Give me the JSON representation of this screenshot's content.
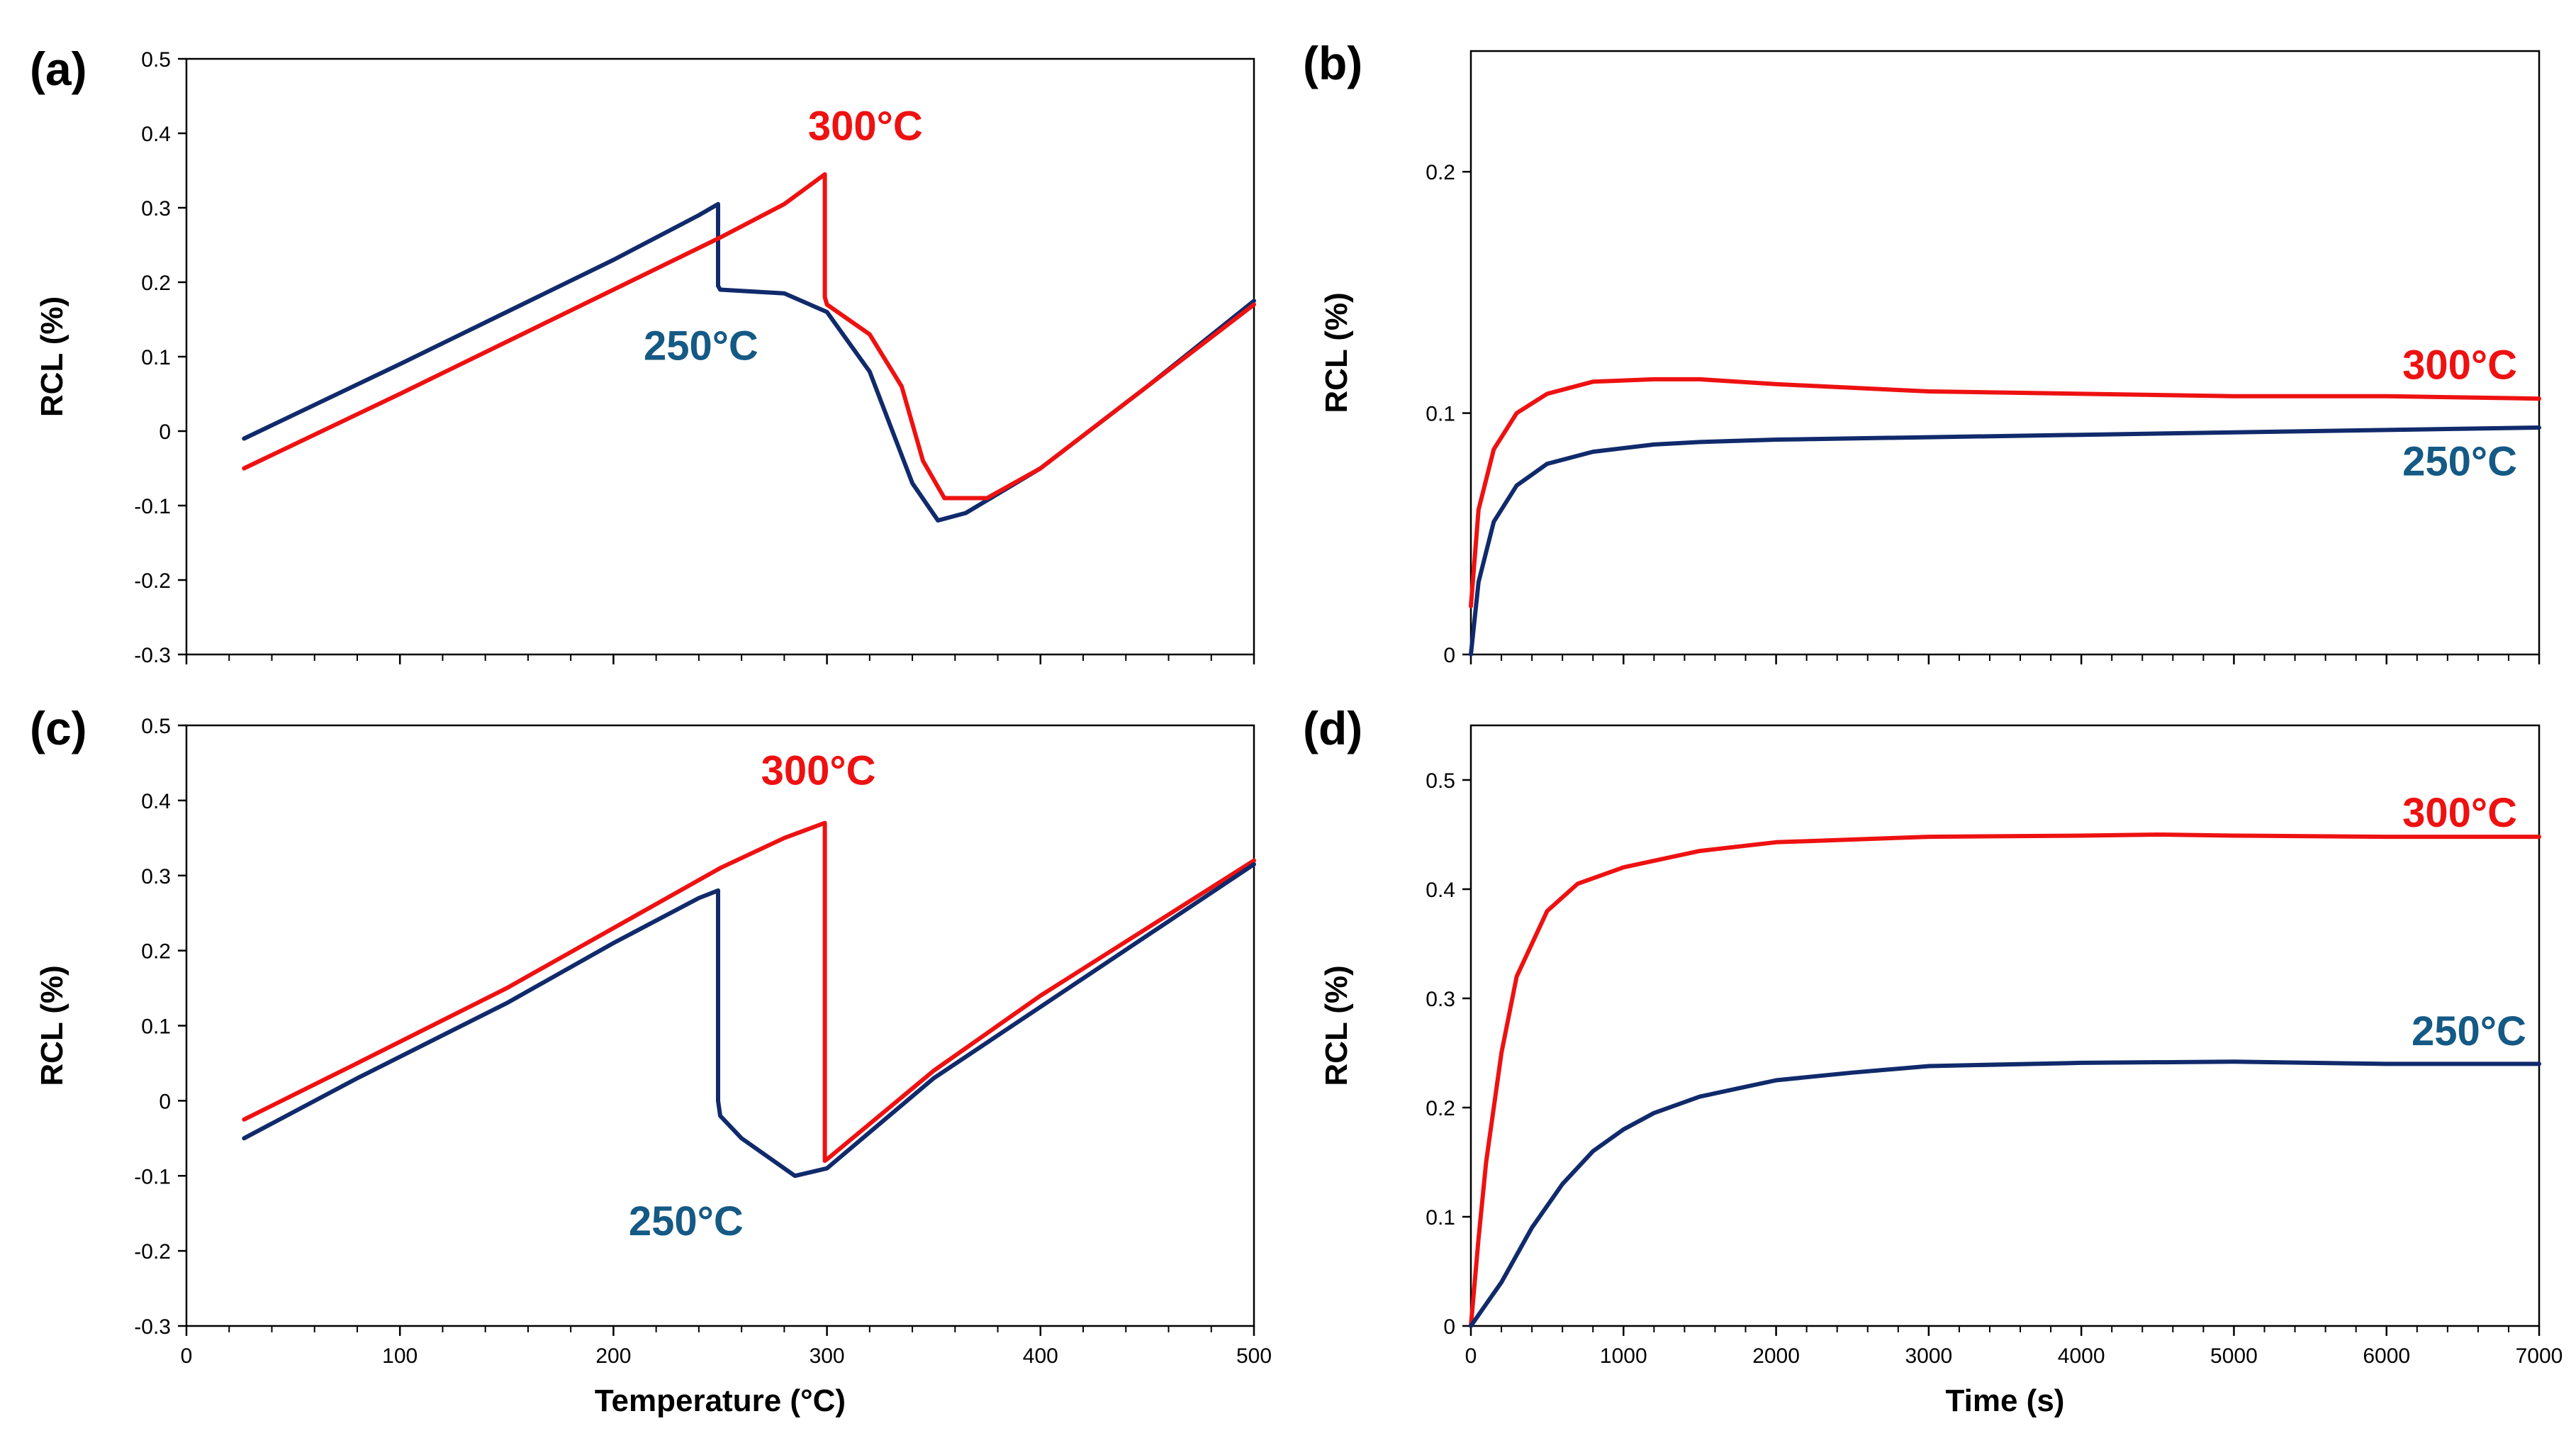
{
  "colors": {
    "red": "#ee1111",
    "navy": "#102a6b",
    "label_blue": "#155985",
    "axis": "#000000"
  },
  "chart_data": [
    {
      "id": "a",
      "panel_label": "(a)",
      "type": "line",
      "xlabel": "",
      "ylabel": "RCL (%)",
      "xlim": [
        0,
        500
      ],
      "ylim": [
        -0.3,
        0.5
      ],
      "xticks": [
        0,
        100,
        200,
        300,
        400,
        500
      ],
      "show_xtick_labels": false,
      "yticks": [
        -0.3,
        -0.2,
        -0.1,
        0,
        0.1,
        0.2,
        0.3,
        0.4,
        0.5
      ],
      "ytick_labels": [
        "-0.3",
        "-0.2",
        "-0.1",
        "0",
        "0.1",
        "0.2",
        "0.3",
        "0.4",
        "0.5"
      ],
      "series": [
        {
          "name": "250°C",
          "color": "navy",
          "x": [
            27,
            100,
            150,
            200,
            240,
            249,
            249,
            249,
            250,
            280,
            300,
            320,
            340,
            352,
            365,
            400,
            450,
            500
          ],
          "y": [
            -0.01,
            0.09,
            0.16,
            0.23,
            0.29,
            0.305,
            0.21,
            0.195,
            0.19,
            0.185,
            0.16,
            0.08,
            -0.07,
            -0.12,
            -0.11,
            -0.05,
            0.06,
            0.175
          ]
        },
        {
          "name": "300°C",
          "color": "red",
          "x": [
            27,
            100,
            150,
            200,
            250,
            280,
            299,
            299,
            299,
            300,
            320,
            335,
            345,
            355,
            375,
            400,
            450,
            500
          ],
          "y": [
            -0.05,
            0.05,
            0.12,
            0.19,
            0.26,
            0.305,
            0.345,
            0.22,
            0.18,
            0.17,
            0.13,
            0.06,
            -0.04,
            -0.09,
            -0.09,
            -0.05,
            0.06,
            0.17
          ]
        }
      ],
      "annotations": [
        {
          "text": "300°C",
          "color": "red",
          "x": 318,
          "y": 0.41
        },
        {
          "text": "250°C",
          "color": "label_blue",
          "x": 241,
          "y": 0.115
        }
      ]
    },
    {
      "id": "b",
      "panel_label": "(b)",
      "type": "line",
      "xlabel": "",
      "ylabel": "RCL (%)",
      "xlim": [
        0,
        7000
      ],
      "ylim": [
        0,
        0.25
      ],
      "xticks": [
        0,
        1000,
        2000,
        3000,
        4000,
        5000,
        6000,
        7000
      ],
      "show_xtick_labels": false,
      "yticks": [
        0,
        0.1,
        0.2
      ],
      "ytick_labels": [
        "0",
        "0.1",
        "0.2"
      ],
      "series": [
        {
          "name": "300°C",
          "color": "red",
          "x": [
            0,
            50,
            150,
            300,
            500,
            800,
            1200,
            1500,
            2000,
            3000,
            4000,
            5000,
            6000,
            7000
          ],
          "y": [
            0.02,
            0.06,
            0.085,
            0.1,
            0.108,
            0.113,
            0.114,
            0.114,
            0.112,
            0.109,
            0.108,
            0.107,
            0.107,
            0.106
          ]
        },
        {
          "name": "250°C",
          "color": "navy",
          "x": [
            0,
            50,
            150,
            300,
            500,
            800,
            1200,
            1500,
            2000,
            3000,
            4000,
            5000,
            6000,
            7000
          ],
          "y": [
            0.0,
            0.03,
            0.055,
            0.07,
            0.079,
            0.084,
            0.087,
            0.088,
            0.089,
            0.09,
            0.091,
            0.092,
            0.093,
            0.094
          ]
        }
      ],
      "annotations": [
        {
          "text": "300°C",
          "color": "red",
          "x": 6480,
          "y": 0.12
        },
        {
          "text": "250°C",
          "color": "label_blue",
          "x": 6480,
          "y": 0.08
        }
      ]
    },
    {
      "id": "c",
      "panel_label": "(c)",
      "type": "line",
      "xlabel": "Temperature (°C)",
      "ylabel": "RCL (%)",
      "xlim": [
        0,
        500
      ],
      "ylim": [
        -0.3,
        0.5
      ],
      "xticks": [
        0,
        100,
        200,
        300,
        400,
        500
      ],
      "show_xtick_labels": true,
      "xtick_labels": [
        "0",
        "100",
        "200",
        "300",
        "400",
        "500"
      ],
      "yticks": [
        -0.3,
        -0.2,
        -0.1,
        0,
        0.1,
        0.2,
        0.3,
        0.4,
        0.5
      ],
      "ytick_labels": [
        "-0.3",
        "-0.2",
        "-0.1",
        "0",
        "0.1",
        "0.2",
        "0.3",
        "0.4",
        "0.5"
      ],
      "series": [
        {
          "name": "300°C",
          "color": "red",
          "x": [
            27,
            80,
            150,
            200,
            250,
            280,
            299,
            299,
            300,
            350,
            400,
            450,
            500
          ],
          "y": [
            -0.025,
            0.05,
            0.15,
            0.23,
            0.31,
            0.35,
            0.37,
            -0.08,
            -0.078,
            0.04,
            0.14,
            0.23,
            0.32
          ]
        },
        {
          "name": "250°C",
          "color": "navy",
          "x": [
            27,
            80,
            150,
            200,
            240,
            249,
            249,
            249,
            250,
            260,
            285,
            300,
            350,
            400,
            450,
            500
          ],
          "y": [
            -0.05,
            0.03,
            0.13,
            0.21,
            0.27,
            0.28,
            0.06,
            0.0,
            -0.02,
            -0.05,
            -0.1,
            -0.09,
            0.03,
            0.125,
            0.22,
            0.315
          ]
        }
      ],
      "annotations": [
        {
          "text": "300°C",
          "color": "red",
          "x": 296,
          "y": 0.44
        },
        {
          "text": "250°C",
          "color": "label_blue",
          "x": 234,
          "y": -0.16
        }
      ]
    },
    {
      "id": "d",
      "panel_label": "(d)",
      "type": "line",
      "xlabel": "Time (s)",
      "ylabel": "RCL (%)",
      "xlim": [
        0,
        7000
      ],
      "ylim": [
        0,
        0.55
      ],
      "xticks": [
        0,
        1000,
        2000,
        3000,
        4000,
        5000,
        6000,
        7000
      ],
      "show_xtick_labels": true,
      "xtick_labels": [
        "0",
        "1000",
        "2000",
        "3000",
        "4000",
        "5000",
        "6000",
        "7000"
      ],
      "yticks": [
        0,
        0.1,
        0.2,
        0.3,
        0.4,
        0.5
      ],
      "ytick_labels": [
        "0",
        "0.1",
        "0.2",
        "0.3",
        "0.4",
        "0.5"
      ],
      "series": [
        {
          "name": "300°C",
          "color": "red",
          "x": [
            0,
            50,
            100,
            200,
            300,
            500,
            700,
            1000,
            1500,
            2000,
            3000,
            4000,
            4500,
            5000,
            6000,
            7000
          ],
          "y": [
            0.0,
            0.08,
            0.15,
            0.25,
            0.32,
            0.38,
            0.405,
            0.42,
            0.435,
            0.443,
            0.448,
            0.449,
            0.45,
            0.449,
            0.448,
            0.448
          ]
        },
        {
          "name": "250°C",
          "color": "navy",
          "x": [
            0,
            100,
            200,
            400,
            600,
            800,
            1000,
            1200,
            1500,
            2000,
            2500,
            3000,
            4000,
            5000,
            6000,
            7000
          ],
          "y": [
            0.0,
            0.02,
            0.04,
            0.09,
            0.13,
            0.16,
            0.18,
            0.195,
            0.21,
            0.225,
            0.232,
            0.238,
            0.241,
            0.242,
            0.24,
            0.24
          ]
        }
      ],
      "annotations": [
        {
          "text": "300°C",
          "color": "red",
          "x": 6480,
          "y": 0.47
        },
        {
          "text": "250°C",
          "color": "label_blue",
          "x": 6540,
          "y": 0.27
        }
      ]
    }
  ]
}
